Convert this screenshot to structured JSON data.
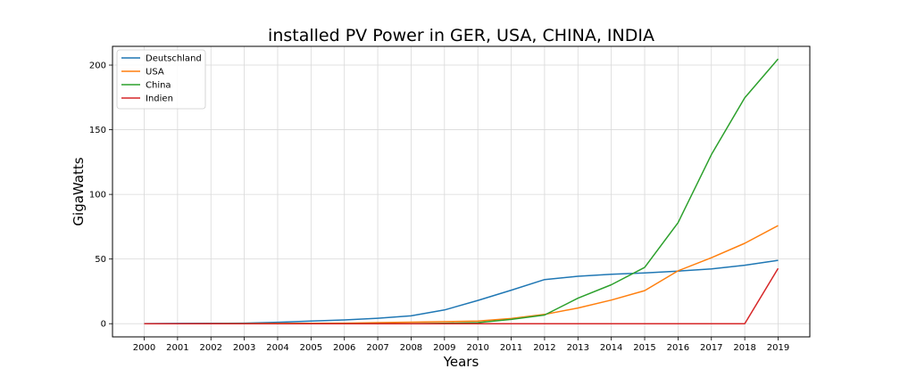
{
  "chart_data": {
    "type": "line",
    "title": "installed PV Power in GER, USA, CHINA, INDIA",
    "xlabel": "Years",
    "ylabel": "GigaWatts",
    "x": [
      "2000",
      "2001",
      "2002",
      "2003",
      "2004",
      "2005",
      "2006",
      "2007",
      "2008",
      "2009",
      "2010",
      "2011",
      "2012",
      "2013",
      "2014",
      "2015",
      "2016",
      "2017",
      "2018",
      "2019"
    ],
    "yticks": [
      0,
      50,
      100,
      150,
      200
    ],
    "ylim": [
      -10.2,
      214.5
    ],
    "grid": true,
    "legend_position": "upper-left",
    "series": [
      {
        "name": "Deutschland",
        "color": "#1f77b4",
        "values": [
          0.1,
          0.2,
          0.3,
          0.4,
          1.1,
          2.0,
          2.9,
          4.2,
          6.1,
          10.6,
          18.0,
          25.9,
          34.1,
          36.7,
          38.2,
          39.2,
          40.7,
          42.3,
          45.2,
          49.0
        ]
      },
      {
        "name": "USA",
        "color": "#ff7f0e",
        "values": [
          0.0,
          0.0,
          0.1,
          0.1,
          0.2,
          0.3,
          0.4,
          0.8,
          1.2,
          1.6,
          2.0,
          4.0,
          7.2,
          12.1,
          18.3,
          25.6,
          40.9,
          51.0,
          62.2,
          75.9
        ]
      },
      {
        "name": "China",
        "color": "#2ca02c",
        "values": [
          0.0,
          0.0,
          0.0,
          0.1,
          0.1,
          0.1,
          0.1,
          0.1,
          0.1,
          0.3,
          0.8,
          3.3,
          6.7,
          19.7,
          30.1,
          43.5,
          78.1,
          130.8,
          174.7,
          204.8
        ]
      },
      {
        "name": "Indien",
        "color": "#d62728",
        "values": [
          0.0,
          0.0,
          0.0,
          0.0,
          0.0,
          0.0,
          0.0,
          0.0,
          0.0,
          0.0,
          0.0,
          0.0,
          0.0,
          0.0,
          0.0,
          0.0,
          0.0,
          0.0,
          0.0,
          42.8
        ]
      }
    ]
  }
}
